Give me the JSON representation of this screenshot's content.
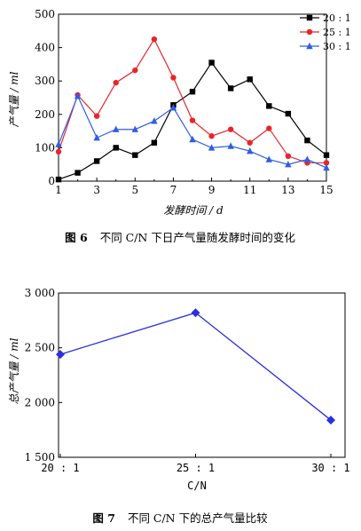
{
  "figures": [
    {
      "caption": "图 6 不同 C/N 下日产气量随发酵时间的变化",
      "caption_prefix": "图 6",
      "caption_text": "不同 C/N 下日产气量随发酵时间的变化"
    },
    {
      "caption": "图 7 不同 C/N 下的总产气量比较",
      "caption_prefix": "图 7",
      "caption_text": "不同 C/N 下的总产气量比较"
    }
  ],
  "chart_data": [
    {
      "type": "line",
      "xlabel": "发酵时间 / d",
      "ylabel": "产气量 / ml",
      "xlim": [
        1,
        15
      ],
      "ylim": [
        0,
        500
      ],
      "xticks": [
        1,
        3,
        5,
        7,
        9,
        11,
        13,
        15
      ],
      "yticks": [
        0,
        100,
        200,
        300,
        400,
        500
      ],
      "legend_position": "top-right",
      "x": [
        1,
        2,
        3,
        4,
        5,
        6,
        7,
        8,
        9,
        10,
        11,
        12,
        13,
        14,
        15
      ],
      "series": [
        {
          "name": "20 : 1",
          "color": "#000000",
          "marker": "square",
          "values": [
            5,
            25,
            60,
            100,
            78,
            115,
            228,
            268,
            355,
            278,
            305,
            225,
            202,
            122,
            78
          ]
        },
        {
          "name": "25 : 1",
          "color": "#e8252b",
          "marker": "circle",
          "values": [
            88,
            258,
            195,
            295,
            332,
            425,
            310,
            182,
            135,
            155,
            115,
            158,
            75,
            55,
            55
          ]
        },
        {
          "name": "30 : 1",
          "color": "#2f5de6",
          "marker": "triangle",
          "values": [
            110,
            255,
            130,
            155,
            155,
            180,
            220,
            125,
            100,
            105,
            90,
            65,
            50,
            65,
            40
          ]
        }
      ]
    },
    {
      "type": "line",
      "xlabel": "C/N",
      "ylabel": "总产气量 / ml",
      "ylim": [
        1500,
        3000
      ],
      "yticks": [
        1500,
        2000,
        2500,
        3000
      ],
      "ytick_labels": [
        "1 500",
        "2 000",
        "2 500",
        "3 000"
      ],
      "categories": [
        "20 : 1",
        "25 : 1",
        "30 : 1"
      ],
      "values": [
        2440,
        2820,
        1840
      ],
      "color": "#2b2fe0",
      "marker": "diamond"
    }
  ]
}
